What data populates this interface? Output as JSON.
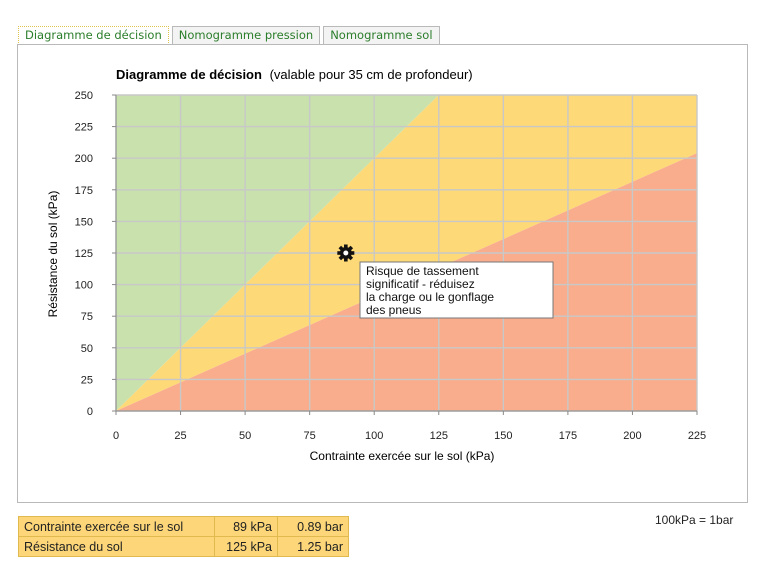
{
  "tabs": [
    {
      "label": "Diagramme de décision",
      "active": true
    },
    {
      "label": "Nomogramme pression",
      "active": false
    },
    {
      "label": "Nomogramme sol",
      "active": false
    }
  ],
  "chart_data": {
    "type": "area",
    "title": "Diagramme de décision",
    "subtitle": "(valable pour 35 cm de profondeur)",
    "xlabel": "Contrainte exercée sur le sol (kPa)",
    "ylabel": "Résistance du sol (kPa)",
    "xlim": [
      0,
      225
    ],
    "ylim": [
      0,
      250
    ],
    "xticks": [
      0,
      25,
      50,
      75,
      100,
      125,
      150,
      175,
      200,
      225
    ],
    "yticks": [
      0,
      25,
      50,
      75,
      100,
      125,
      150,
      175,
      200,
      225,
      250
    ],
    "grid": true,
    "zones": [
      {
        "name": "green",
        "color": "#c9e1ad",
        "points": [
          [
            0,
            0
          ],
          [
            125,
            250
          ],
          [
            0,
            250
          ]
        ]
      },
      {
        "name": "yellow",
        "color": "#fdd978",
        "points": [
          [
            0,
            0
          ],
          [
            225,
            204
          ],
          [
            225,
            250
          ],
          [
            125,
            250
          ]
        ]
      },
      {
        "name": "red",
        "color": "#f9ad8c",
        "points": [
          [
            0,
            0
          ],
          [
            225,
            0
          ],
          [
            225,
            204
          ]
        ]
      }
    ],
    "point": {
      "x": 89,
      "y": 125
    },
    "annotation": "Risque de tassement significatif - réduisez la charge ou le gonflage des pneus"
  },
  "table": {
    "rows": [
      {
        "label": "Contrainte exercée sur le sol",
        "kpa": "89 kPa",
        "bar": "0.89 bar"
      },
      {
        "label": "Résistance du sol",
        "kpa": "125 kPa",
        "bar": "1.25 bar"
      }
    ]
  },
  "note": "100kPa = 1bar"
}
